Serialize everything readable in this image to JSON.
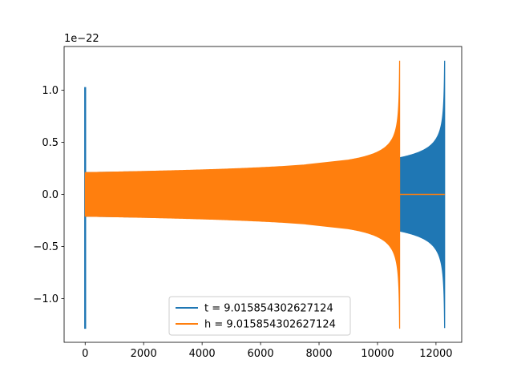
{
  "chart_data": {
    "type": "line",
    "title": "",
    "xlabel": "",
    "ylabel": "",
    "y_offset_label": "1e−22",
    "xlim": [
      -720,
      12880
    ],
    "ylim": [
      -1.42,
      1.42
    ],
    "x_ticks": [
      0,
      2000,
      4000,
      6000,
      8000,
      10000,
      12000
    ],
    "x_tick_labels": [
      "0",
      "2000",
      "4000",
      "6000",
      "8000",
      "10000",
      "12000"
    ],
    "y_ticks": [
      -1.0,
      -0.5,
      0.0,
      0.5,
      1.0
    ],
    "y_tick_labels": [
      "−1.0",
      "−0.5",
      "0.0",
      "0.5",
      "1.0"
    ],
    "grid": false,
    "legend_position": "lower-center",
    "series": [
      {
        "name": "t = 9.015854302627124",
        "color": "#1f77b4",
        "x_start": 0,
        "x_end": 12300,
        "initial_spike": {
          "x": 0,
          "min": -1.29,
          "max": 1.03
        },
        "envelope_start": 0.21,
        "envelope_end": 1.28,
        "min_at_end": -1.03
      },
      {
        "name": "h = 9.015854302627124",
        "color": "#ff7f0e",
        "x_start": 0,
        "x_end": 10760,
        "envelope_start": 0.21,
        "envelope_end": 1.28,
        "min_at_end": -1.29,
        "flat_after": {
          "x_start": 10760,
          "x_end": 12300,
          "y": 0.0
        }
      }
    ]
  }
}
